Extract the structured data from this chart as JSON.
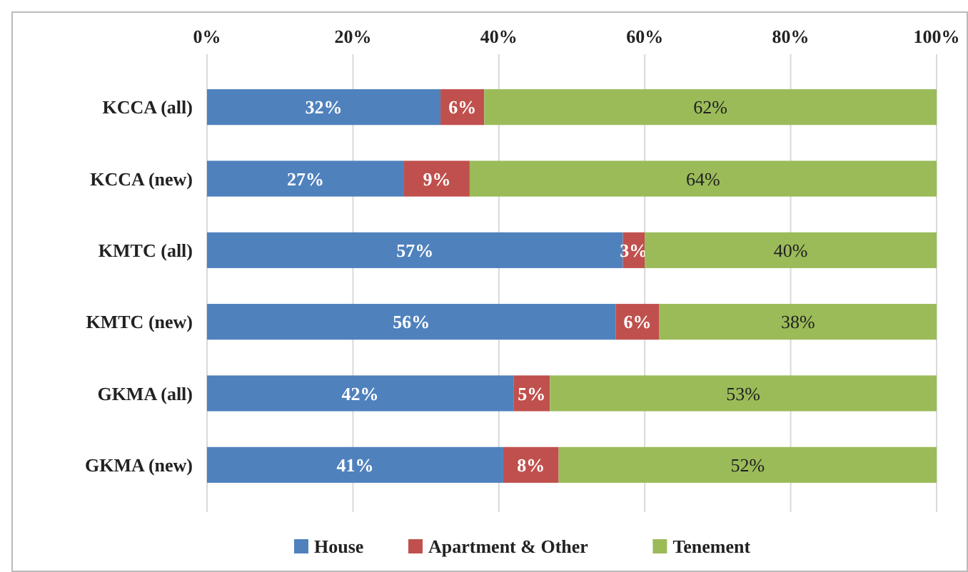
{
  "chart_data": {
    "type": "bar",
    "orientation": "horizontal",
    "stacked": true,
    "categories": [
      "KCCA (all)",
      "KCCA (new)",
      "KMTC (all)",
      "KMTC (new)",
      "GKMA (all)",
      "GKMA (new)"
    ],
    "series": [
      {
        "name": "House",
        "color": "#4f81bd",
        "values": [
          32,
          27,
          57,
          56,
          42,
          40.6
        ],
        "value_labels": [
          "32%",
          "27%",
          "57%",
          "56%",
          "42%",
          "41%"
        ]
      },
      {
        "name": "Apartment & Other",
        "color": "#c0504d",
        "values": [
          6,
          9,
          3,
          6,
          5,
          7.6
        ],
        "value_labels": [
          "6%",
          "9%",
          "3%",
          "6%",
          "5%",
          "8%"
        ]
      },
      {
        "name": "Tenement",
        "color": "#9bbb59",
        "values": [
          62,
          64,
          40,
          38,
          53,
          51.8
        ],
        "value_labels": [
          "62%",
          "64%",
          "40%",
          "38%",
          "53%",
          "52%"
        ]
      }
    ],
    "xlim": [
      0,
      100
    ],
    "xticks": [
      {
        "value": 0,
        "label": "0%"
      },
      {
        "value": 20,
        "label": "20%"
      },
      {
        "value": 40,
        "label": "40%"
      },
      {
        "value": 60,
        "label": "60%"
      },
      {
        "value": 80,
        "label": "80%"
      },
      {
        "value": 100,
        "label": "100%"
      }
    ],
    "grid": "x",
    "legend": "bottom"
  }
}
